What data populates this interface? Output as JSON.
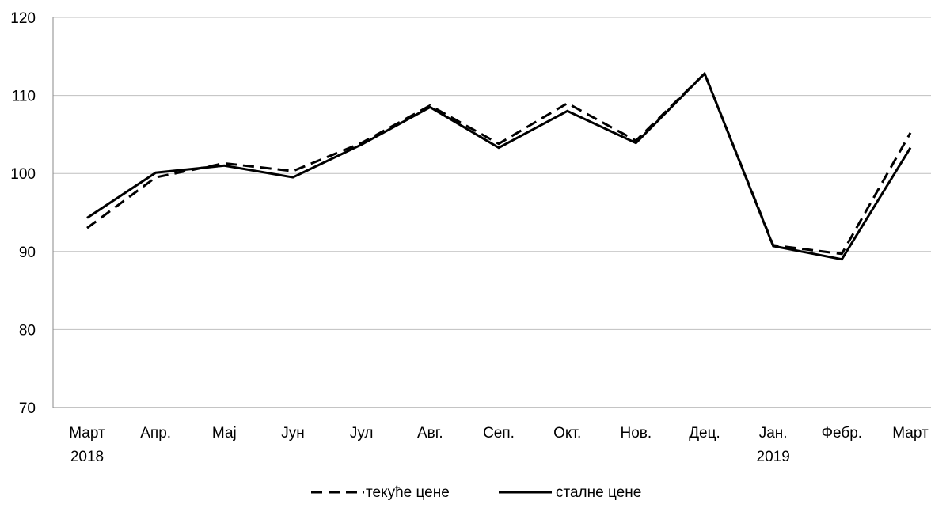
{
  "chart_data": {
    "type": "line",
    "categories": [
      "Март",
      "Апр.",
      "Мај",
      "Јун",
      "Јул",
      "Авг.",
      "Сеп.",
      "Окт.",
      "Нов.",
      "Дец.",
      "Јан.",
      "Фебр.",
      "Март"
    ],
    "category_sublabels": [
      "2018",
      "",
      "",
      "",
      "",
      "",
      "",
      "",
      "",
      "",
      "2019",
      "",
      ""
    ],
    "series": [
      {
        "name": "текуће цене",
        "style": "dashed",
        "color": "#000000",
        "values": [
          93.0,
          99.5,
          101.3,
          100.3,
          103.9,
          108.7,
          103.8,
          109.0,
          104.2,
          112.8,
          90.8,
          89.7,
          105.2
        ]
      },
      {
        "name": "сталне цене",
        "style": "solid",
        "color": "#000000",
        "values": [
          94.3,
          100.1,
          101.0,
          99.5,
          103.7,
          108.5,
          103.3,
          108.0,
          103.9,
          112.8,
          90.7,
          89.0,
          103.3
        ]
      }
    ],
    "ylim": [
      70,
      120
    ],
    "yticks": [
      70,
      80,
      90,
      100,
      110,
      120
    ],
    "ytick_labels": [
      "70",
      "80",
      "90",
      "100",
      "110",
      "120"
    ],
    "grid": "horizontal",
    "grid_color": "#bfbfbf",
    "legend_position": "bottom-center",
    "title": "",
    "xlabel": "",
    "ylabel": ""
  }
}
